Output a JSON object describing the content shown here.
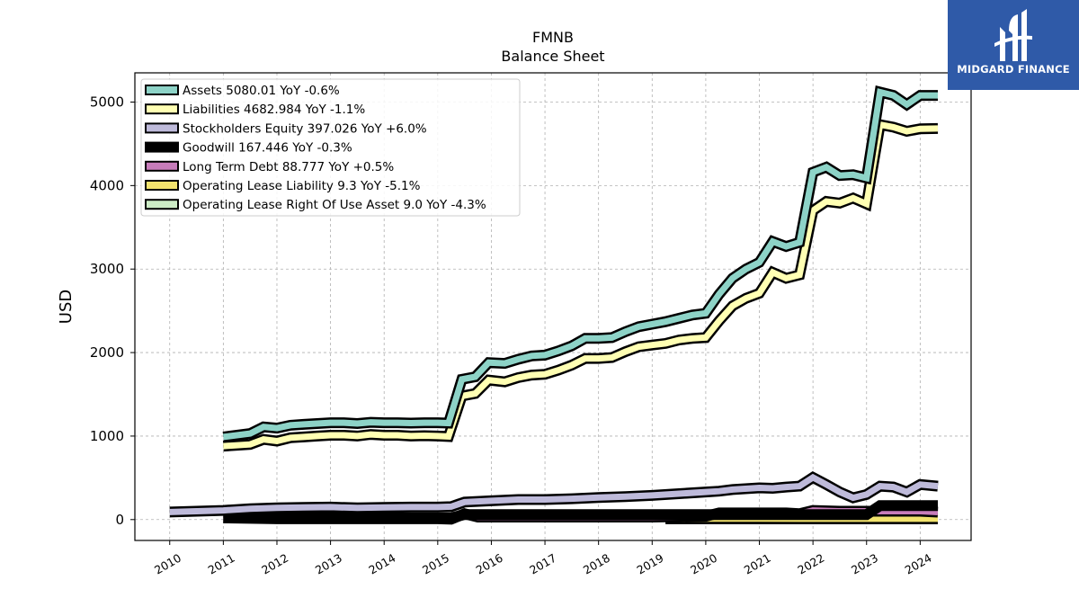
{
  "chart_data": {
    "type": "line",
    "title": "FMNB",
    "subtitle": "Balance  Sheet",
    "ylabel": "USD",
    "xlabel": "",
    "ylim": [
      -250,
      5350
    ],
    "xlim": [
      2009.35,
      2024.95
    ],
    "yticks": [
      0,
      1000,
      2000,
      3000,
      4000,
      5000
    ],
    "xticks": [
      "2010",
      "2011",
      "2012",
      "2013",
      "2014",
      "2015",
      "2016",
      "2017",
      "2018",
      "2019",
      "2020",
      "2021",
      "2022",
      "2023",
      "2024"
    ],
    "grid": true,
    "legend_position": "top-left",
    "series": [
      {
        "name": "Assets",
        "legend": "Assets  5080.01 YoY -0.6%",
        "color": "#8dd3c7",
        "points": [
          [
            2011.0,
            990
          ],
          [
            2011.5,
            1030
          ],
          [
            2011.75,
            1110
          ],
          [
            2012.0,
            1095
          ],
          [
            2012.25,
            1130
          ],
          [
            2012.5,
            1140
          ],
          [
            2012.75,
            1150
          ],
          [
            2013.0,
            1160
          ],
          [
            2013.25,
            1160
          ],
          [
            2013.5,
            1150
          ],
          [
            2013.75,
            1165
          ],
          [
            2014.0,
            1160
          ],
          [
            2014.25,
            1160
          ],
          [
            2014.5,
            1155
          ],
          [
            2014.75,
            1160
          ],
          [
            2015.0,
            1160
          ],
          [
            2015.2,
            1155
          ],
          [
            2015.45,
            1680
          ],
          [
            2015.7,
            1710
          ],
          [
            2015.95,
            1880
          ],
          [
            2016.25,
            1870
          ],
          [
            2016.5,
            1920
          ],
          [
            2016.75,
            1960
          ],
          [
            2017.0,
            1970
          ],
          [
            2017.25,
            2020
          ],
          [
            2017.5,
            2080
          ],
          [
            2017.75,
            2170
          ],
          [
            2018.0,
            2170
          ],
          [
            2018.25,
            2180
          ],
          [
            2018.5,
            2250
          ],
          [
            2018.75,
            2310
          ],
          [
            2019.0,
            2340
          ],
          [
            2019.25,
            2370
          ],
          [
            2019.5,
            2410
          ],
          [
            2019.75,
            2450
          ],
          [
            2020.0,
            2470
          ],
          [
            2020.25,
            2700
          ],
          [
            2020.5,
            2890
          ],
          [
            2020.75,
            3000
          ],
          [
            2021.0,
            3080
          ],
          [
            2021.25,
            3330
          ],
          [
            2021.5,
            3270
          ],
          [
            2021.75,
            3320
          ],
          [
            2022.0,
            4160
          ],
          [
            2022.25,
            4220
          ],
          [
            2022.5,
            4120
          ],
          [
            2022.75,
            4130
          ],
          [
            2023.0,
            4090
          ],
          [
            2023.25,
            5120
          ],
          [
            2023.5,
            5080
          ],
          [
            2023.75,
            4970
          ],
          [
            2024.0,
            5080
          ],
          [
            2024.33,
            5080
          ]
        ]
      },
      {
        "name": "Liabilities",
        "legend": "Liabilities  4682.984 YoY -1.1%",
        "color": "#ffffb3",
        "points": [
          [
            2011.0,
            880
          ],
          [
            2011.5,
            900
          ],
          [
            2011.75,
            960
          ],
          [
            2012.0,
            940
          ],
          [
            2012.25,
            980
          ],
          [
            2012.5,
            990
          ],
          [
            2012.75,
            1000
          ],
          [
            2013.0,
            1010
          ],
          [
            2013.25,
            1010
          ],
          [
            2013.5,
            1000
          ],
          [
            2013.75,
            1020
          ],
          [
            2014.0,
            1010
          ],
          [
            2014.25,
            1010
          ],
          [
            2014.5,
            1000
          ],
          [
            2014.75,
            1005
          ],
          [
            2015.0,
            1000
          ],
          [
            2015.2,
            995
          ],
          [
            2015.45,
            1480
          ],
          [
            2015.7,
            1510
          ],
          [
            2015.95,
            1670
          ],
          [
            2016.25,
            1650
          ],
          [
            2016.5,
            1700
          ],
          [
            2016.75,
            1730
          ],
          [
            2017.0,
            1740
          ],
          [
            2017.25,
            1790
          ],
          [
            2017.5,
            1850
          ],
          [
            2017.75,
            1930
          ],
          [
            2018.0,
            1930
          ],
          [
            2018.25,
            1940
          ],
          [
            2018.5,
            2010
          ],
          [
            2018.75,
            2070
          ],
          [
            2019.0,
            2090
          ],
          [
            2019.25,
            2110
          ],
          [
            2019.5,
            2150
          ],
          [
            2019.75,
            2170
          ],
          [
            2020.0,
            2180
          ],
          [
            2020.25,
            2380
          ],
          [
            2020.5,
            2560
          ],
          [
            2020.75,
            2650
          ],
          [
            2021.0,
            2710
          ],
          [
            2021.25,
            2960
          ],
          [
            2021.5,
            2890
          ],
          [
            2021.75,
            2930
          ],
          [
            2022.0,
            3700
          ],
          [
            2022.25,
            3810
          ],
          [
            2022.5,
            3790
          ],
          [
            2022.75,
            3850
          ],
          [
            2023.0,
            3780
          ],
          [
            2023.25,
            4730
          ],
          [
            2023.5,
            4700
          ],
          [
            2023.75,
            4650
          ],
          [
            2024.0,
            4680
          ],
          [
            2024.33,
            4683
          ]
        ]
      },
      {
        "name": "Stockholders Equity",
        "legend": "Stockholders Equity  397.026 YoY +6.0%",
        "color": "#bebada",
        "points": [
          [
            2010.0,
            90
          ],
          [
            2010.5,
            100
          ],
          [
            2011.0,
            110
          ],
          [
            2011.5,
            130
          ],
          [
            2012.0,
            140
          ],
          [
            2012.5,
            145
          ],
          [
            2013.0,
            150
          ],
          [
            2013.5,
            140
          ],
          [
            2014.0,
            145
          ],
          [
            2014.5,
            150
          ],
          [
            2015.0,
            150
          ],
          [
            2015.25,
            155
          ],
          [
            2015.5,
            210
          ],
          [
            2016.0,
            225
          ],
          [
            2016.5,
            240
          ],
          [
            2017.0,
            240
          ],
          [
            2017.5,
            250
          ],
          [
            2018.0,
            265
          ],
          [
            2018.5,
            275
          ],
          [
            2019.0,
            290
          ],
          [
            2019.5,
            310
          ],
          [
            2020.0,
            330
          ],
          [
            2020.25,
            340
          ],
          [
            2020.5,
            360
          ],
          [
            2021.0,
            380
          ],
          [
            2021.25,
            375
          ],
          [
            2021.5,
            390
          ],
          [
            2021.75,
            400
          ],
          [
            2022.0,
            505
          ],
          [
            2022.25,
            420
          ],
          [
            2022.5,
            330
          ],
          [
            2022.75,
            260
          ],
          [
            2023.0,
            300
          ],
          [
            2023.25,
            400
          ],
          [
            2023.5,
            390
          ],
          [
            2023.75,
            330
          ],
          [
            2024.0,
            420
          ],
          [
            2024.33,
            400
          ]
        ]
      },
      {
        "name": "Goodwill",
        "legend": "Goodwill  167.446 YoY -0.3%",
        "color": "#000000",
        "points": [
          [
            2011.0,
            20
          ],
          [
            2015.25,
            20
          ],
          [
            2015.5,
            60
          ],
          [
            2023.0,
            60
          ],
          [
            2023.25,
            167
          ],
          [
            2024.33,
            167
          ]
        ]
      },
      {
        "name": "Long Term Debt",
        "legend": "Long Term Debt  88.777 YoY +0.5%",
        "color": "#c77cba",
        "points": [
          [
            2011.0,
            20
          ],
          [
            2012.0,
            10
          ],
          [
            2013.0,
            10
          ],
          [
            2014.0,
            10
          ],
          [
            2015.0,
            10
          ],
          [
            2015.25,
            5
          ],
          [
            2015.5,
            70
          ],
          [
            2015.75,
            30
          ],
          [
            2016.0,
            30
          ],
          [
            2017.0,
            30
          ],
          [
            2018.0,
            30
          ],
          [
            2019.0,
            30
          ],
          [
            2020.0,
            40
          ],
          [
            2020.25,
            80
          ],
          [
            2021.0,
            80
          ],
          [
            2021.5,
            80
          ],
          [
            2021.75,
            70
          ],
          [
            2022.0,
            110
          ],
          [
            2022.5,
            100
          ],
          [
            2023.0,
            100
          ],
          [
            2023.25,
            100
          ],
          [
            2024.0,
            100
          ],
          [
            2024.33,
            89
          ]
        ]
      },
      {
        "name": "Operating Lease Liability",
        "legend": "Operating Lease Liability  9.3 YoY -5.1%",
        "color": "#f2e36e",
        "points": [
          [
            2019.25,
            12
          ],
          [
            2020.0,
            12
          ],
          [
            2021.0,
            11
          ],
          [
            2022.0,
            10
          ],
          [
            2023.0,
            10
          ],
          [
            2024.0,
            10
          ],
          [
            2024.33,
            9.3
          ]
        ]
      },
      {
        "name": "Operating Lease Right Of Use Asset",
        "legend": "Operating Lease Right Of Use Asset  9.0 YoY -4.3%",
        "color": "#ccebc5",
        "points": [
          [
            2019.25,
            10
          ],
          [
            2020.0,
            10
          ],
          [
            2021.0,
            9
          ],
          [
            2022.0,
            9
          ],
          [
            2023.0,
            9
          ],
          [
            2023.75,
            10
          ],
          [
            2024.0,
            8
          ],
          [
            2024.33,
            9.0
          ]
        ]
      }
    ]
  },
  "logo": {
    "text": "MIDGARD FINANCE",
    "background": "#2f5aa8"
  }
}
